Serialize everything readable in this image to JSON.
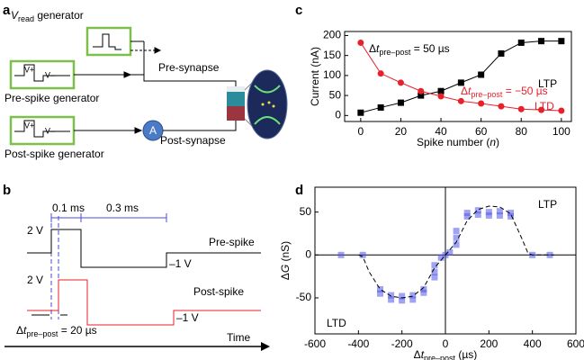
{
  "panel_labels": [
    "a",
    "b",
    "c",
    "d"
  ],
  "diagram_a": {
    "vread": [
      {
        "t": "V",
        "style": "italic"
      },
      {
        "t": "read",
        "style": "sub"
      },
      {
        "t": " generator"
      }
    ],
    "pre_gen": "Pre-spike generator",
    "post_gen": "Post-spike generator",
    "pre_synapse": "Pre-synapse",
    "post_synapse": "Post-synapse",
    "ammeter": "A",
    "pre_pulse": [
      "V+",
      "V–"
    ],
    "post_pulse": [
      "V+",
      "V–"
    ]
  },
  "waveforms_b": {
    "width_1": "0.1 ms",
    "width_2": "0.3 ms",
    "pre_high": "2 V",
    "post_high": "2 V",
    "pre_low": "–1 V",
    "post_low": "–1 V",
    "pre_label": "Pre-spike",
    "post_label": "Post-spike",
    "delay": [
      {
        "t": "Δ"
      },
      {
        "t": "t",
        "style": "italic"
      },
      {
        "t": "pre–post",
        "style": "sub"
      },
      {
        "t": " = 20 µs"
      }
    ],
    "time": "Time"
  },
  "chart_data": [
    {
      "type": "line",
      "x": [
        0,
        10,
        20,
        30,
        40,
        50,
        60,
        70,
        80,
        90,
        100
      ],
      "series": [
        {
          "color": "#000000",
          "marker": "square",
          "values": [
            7,
            20,
            32,
            50,
            61,
            82,
            102,
            155,
            182,
            186,
            186
          ]
        },
        {
          "color": "#e8202a",
          "marker": "circle",
          "values": [
            182,
            105,
            82,
            61,
            48,
            36,
            30,
            23,
            16,
            14,
            12
          ]
        }
      ],
      "xlim": [
        -8,
        105
      ],
      "ylim": [
        -15,
        210
      ],
      "xticks": [
        0,
        20,
        40,
        60,
        80,
        100
      ],
      "yticks": [
        0,
        50,
        100,
        150,
        200
      ],
      "xlabel": [
        {
          "t": "Spike number ("
        },
        {
          "t": "n",
          "style": "italic"
        },
        {
          "t": ")"
        }
      ],
      "ylabel": [
        {
          "t": "Current (nA)"
        }
      ],
      "annotations": [
        {
          "color": "#000000",
          "text": [
            {
              "t": "Δ"
            },
            {
              "t": "t",
              "style": "italic"
            },
            {
              "t": "pre–post",
              "style": "sub"
            },
            {
              "t": " = 50 µs"
            }
          ]
        },
        {
          "color": "#000000",
          "text": [
            {
              "t": "LTP"
            }
          ]
        },
        {
          "color": "#e8202a",
          "text": [
            {
              "t": "Δ"
            },
            {
              "t": "t",
              "style": "italic"
            },
            {
              "t": "pre–post",
              "style": "sub"
            },
            {
              "t": " = −50 µs"
            }
          ]
        },
        {
          "color": "#e8202a",
          "text": [
            {
              "t": "LTD"
            }
          ]
        }
      ]
    },
    {
      "type": "scatter",
      "color": "#5058e8",
      "marker": "square",
      "x": [
        -480,
        -380,
        -300,
        -300,
        -250,
        -250,
        -200,
        -200,
        -150,
        -150,
        -100,
        -100,
        -50,
        -50,
        -50,
        -20,
        0,
        20,
        50,
        50,
        50,
        100,
        100,
        150,
        150,
        200,
        200,
        250,
        250,
        300,
        300,
        400,
        480
      ],
      "y": [
        0,
        0,
        -40,
        -45,
        -47,
        -52,
        -48,
        -53,
        -47,
        -52,
        -40,
        -44,
        -12,
        -20,
        -26,
        -3,
        0,
        3,
        12,
        20,
        28,
        45,
        49,
        47,
        52,
        46,
        50,
        46,
        51,
        45,
        49,
        0,
        0
      ],
      "fit": {
        "x": [
          -400,
          -380,
          -350,
          -300,
          -250,
          -200,
          -150,
          -100,
          -50,
          0,
          50,
          100,
          150,
          200,
          250,
          300,
          350,
          380,
          400,
          500
        ],
        "y": [
          0,
          -2,
          -20,
          -40,
          -48,
          -50,
          -48,
          -38,
          -15,
          0,
          15,
          40,
          53,
          57,
          56,
          48,
          20,
          2,
          0,
          0
        ],
        "style": "dashed"
      },
      "xlim": [
        -600,
        600
      ],
      "ylim": [
        -92,
        79
      ],
      "xticks": [
        -600,
        -400,
        -200,
        0,
        200,
        400,
        600
      ],
      "yticks": [
        -50,
        0,
        50
      ],
      "zero_lines": true,
      "xlabel": [
        {
          "t": "Δ"
        },
        {
          "t": "t",
          "style": "italic"
        },
        {
          "t": "pre–post",
          "style": "sub"
        },
        {
          "t": " (µs)"
        }
      ],
      "ylabel": [
        {
          "t": "Δ"
        },
        {
          "t": "G",
          "style": "italic"
        },
        {
          "t": " (nS)"
        }
      ],
      "annotations": [
        {
          "color": "#000000",
          "text": [
            {
              "t": "LTP"
            }
          ]
        },
        {
          "color": "#000000",
          "text": [
            {
              "t": "LTD"
            }
          ]
        }
      ]
    }
  ]
}
